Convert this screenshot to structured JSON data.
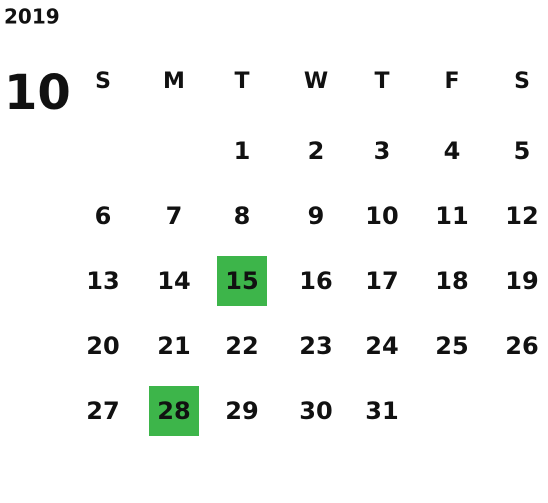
{
  "year": "2019",
  "month": "10",
  "weekdays": [
    "S",
    "M",
    "T",
    "W",
    "T",
    "F",
    "S"
  ],
  "weeks": [
    [
      null,
      null,
      1,
      2,
      3,
      4,
      5
    ],
    [
      6,
      7,
      8,
      9,
      10,
      11,
      12
    ],
    [
      13,
      14,
      15,
      16,
      17,
      18,
      19
    ],
    [
      20,
      21,
      22,
      23,
      24,
      25,
      26
    ],
    [
      27,
      28,
      29,
      30,
      31,
      null,
      null
    ]
  ],
  "highlighted_days": [
    15,
    28
  ],
  "highlight_color": "#3db54a"
}
